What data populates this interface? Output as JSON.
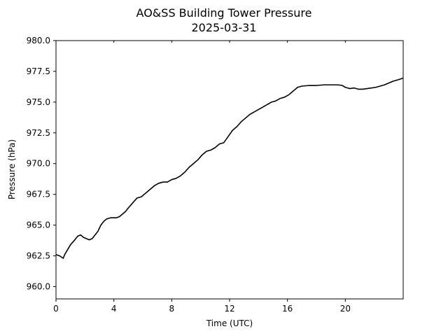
{
  "chart_data": {
    "type": "line",
    "title": "AO&SS Building Tower Pressure",
    "subtitle": "2025-03-31",
    "xlabel": "Time (UTC)",
    "ylabel": "Pressure (hPa)",
    "xlim": [
      0,
      24
    ],
    "ylim": [
      959.0,
      980.0
    ],
    "x_ticks": [
      0,
      4,
      8,
      12,
      16,
      20
    ],
    "x_tick_labels": [
      "0",
      "4",
      "8",
      "12",
      "16",
      "20"
    ],
    "y_ticks": [
      960.0,
      962.5,
      965.0,
      967.5,
      970.0,
      972.5,
      975.0,
      977.5,
      980.0
    ],
    "y_tick_labels": [
      "960.0",
      "962.5",
      "965.0",
      "967.5",
      "970.0",
      "972.5",
      "975.0",
      "977.5",
      "980.0"
    ],
    "grid": false,
    "colors": {
      "line": "#000000",
      "axes": "#000000"
    },
    "series": [
      {
        "x": [
          0.0,
          0.25,
          0.5,
          0.6,
          0.8,
          1.0,
          1.3,
          1.5,
          1.7,
          1.9,
          2.1,
          2.3,
          2.5,
          2.7,
          2.9,
          3.1,
          3.3,
          3.5,
          3.8,
          4.0,
          4.2,
          4.4,
          4.6,
          4.8,
          5.0,
          5.3,
          5.6,
          5.9,
          6.2,
          6.5,
          6.8,
          7.1,
          7.4,
          7.7,
          8.0,
          8.3,
          8.6,
          8.9,
          9.2,
          9.5,
          9.8,
          10.1,
          10.4,
          10.7,
          11.0,
          11.3,
          11.6,
          11.9,
          12.2,
          12.5,
          12.8,
          13.1,
          13.4,
          13.7,
          14.0,
          14.3,
          14.6,
          14.9,
          15.2,
          15.5,
          15.8,
          16.1,
          16.4,
          16.7,
          17.0,
          17.5,
          18.0,
          18.5,
          19.0,
          19.5,
          19.8,
          20.0,
          20.3,
          20.6,
          20.9,
          21.2,
          21.5,
          21.8,
          22.1,
          22.4,
          22.7,
          23.0,
          23.3,
          23.6,
          24.0
        ],
        "y": [
          962.6,
          962.5,
          962.3,
          962.6,
          963.0,
          963.4,
          963.8,
          964.1,
          964.2,
          964.0,
          963.9,
          963.8,
          963.9,
          964.2,
          964.5,
          965.0,
          965.3,
          965.5,
          965.6,
          965.6,
          965.6,
          965.7,
          965.9,
          966.1,
          966.4,
          966.8,
          967.2,
          967.3,
          967.6,
          967.9,
          968.2,
          968.4,
          968.5,
          968.5,
          968.7,
          968.8,
          969.0,
          969.3,
          969.7,
          970.0,
          970.3,
          970.7,
          971.0,
          971.1,
          971.3,
          971.6,
          971.7,
          972.2,
          972.7,
          973.0,
          973.4,
          973.7,
          974.0,
          974.2,
          974.4,
          974.6,
          974.8,
          975.0,
          975.1,
          975.3,
          975.4,
          975.6,
          975.9,
          976.2,
          976.3,
          976.35,
          976.35,
          976.4,
          976.4,
          976.4,
          976.35,
          976.2,
          976.1,
          976.15,
          976.05,
          976.05,
          976.1,
          976.15,
          976.2,
          976.3,
          976.4,
          976.55,
          976.7,
          976.8,
          976.95
        ]
      }
    ]
  }
}
